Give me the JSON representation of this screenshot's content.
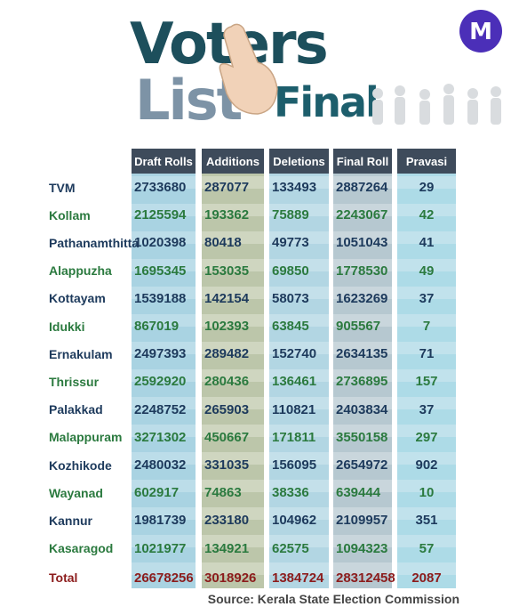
{
  "header": {
    "title_line_1": "Voters",
    "title_line_2": "List",
    "title_line_3": "Final",
    "logo": "M"
  },
  "table": {
    "columns": [
      "Draft Rolls",
      "Additions",
      "Deletions",
      "Final Roll",
      "Pravasi"
    ],
    "rows": [
      {
        "name": "TVM",
        "cells": [
          2733680,
          287077,
          133493,
          2887264,
          29
        ]
      },
      {
        "name": "Kollam",
        "cells": [
          2125594,
          193362,
          75889,
          2243067,
          42
        ]
      },
      {
        "name": "Pathanamthitta",
        "cells": [
          1020398,
          80418,
          49773,
          1051043,
          41
        ]
      },
      {
        "name": "Alappuzha",
        "cells": [
          1695345,
          153035,
          69850,
          1778530,
          49
        ]
      },
      {
        "name": "Kottayam",
        "cells": [
          1539188,
          142154,
          58073,
          1623269,
          37
        ]
      },
      {
        "name": "Idukki",
        "cells": [
          867019,
          102393,
          63845,
          905567,
          7
        ]
      },
      {
        "name": "Ernakulam",
        "cells": [
          2497393,
          289482,
          152740,
          2634135,
          71
        ]
      },
      {
        "name": "Thrissur",
        "cells": [
          2592920,
          280436,
          136461,
          2736895,
          157
        ]
      },
      {
        "name": "Palakkad",
        "cells": [
          2248752,
          265903,
          110821,
          2403834,
          37
        ]
      },
      {
        "name": "Malappuram",
        "cells": [
          3271302,
          450667,
          171811,
          3550158,
          297
        ]
      },
      {
        "name": "Kozhikode",
        "cells": [
          2480032,
          331035,
          156095,
          2654972,
          902
        ]
      },
      {
        "name": "Wayanad",
        "cells": [
          602917,
          74863,
          38336,
          639444,
          10
        ]
      },
      {
        "name": "Kannur",
        "cells": [
          1981739,
          233180,
          104962,
          2109957,
          351
        ]
      },
      {
        "name": "Kasaragod",
        "cells": [
          1021977,
          134921,
          62575,
          1094323,
          57
        ]
      },
      {
        "name": "Total",
        "cells": [
          26678256,
          3018926,
          1384724,
          28312458,
          2087
        ]
      }
    ]
  },
  "footer": {
    "source": "Source: Kerala State Election Commission"
  }
}
